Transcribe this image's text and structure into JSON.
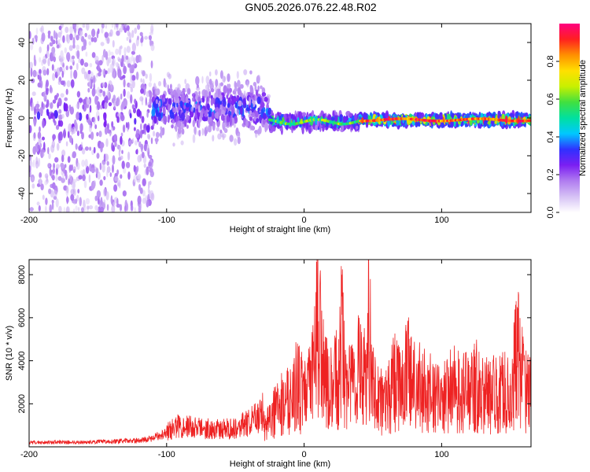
{
  "title": "GN05.2026.076.22.48.R02",
  "chart_data": [
    {
      "type": "heatmap",
      "xlabel": "Height of straight line (km)",
      "ylabel": "Frequency (Hz)",
      "xlim": [
        -200,
        165
      ],
      "ylim": [
        -50,
        50
      ],
      "xticks": [
        -200,
        -100,
        0,
        100
      ],
      "yticks": [
        -40,
        -20,
        0,
        20,
        40
      ],
      "colorbar": {
        "label": "Normalized spectral amplitude",
        "range": [
          0.0,
          1.0
        ],
        "ticks": [
          0.0,
          0.2,
          0.4,
          0.6,
          0.8
        ],
        "tick_labels": [
          "0.0",
          "0.2",
          "0.4",
          "0.6",
          "0.8"
        ],
        "colormap": [
          "#ffffff",
          "#d6c2f5",
          "#b07cf0",
          "#7b1ff2",
          "#3030ff",
          "#00c8ff",
          "#00e0a0",
          "#40e040",
          "#c8f000",
          "#ffe000",
          "#ff9000",
          "#ff2020",
          "#ff0080"
        ]
      },
      "regions": [
        {
          "x_range": [
            -200,
            -110
          ],
          "y_center": 0,
          "y_spread": 50,
          "amplitude": 0.15,
          "description_level": "scattered noise"
        },
        {
          "x_range": [
            -110,
            -25
          ],
          "y_center": 5,
          "y_spread": 12,
          "amplitude": 0.35
        },
        {
          "x_range": [
            -25,
            40
          ],
          "y_center": -2,
          "y_spread": 3,
          "amplitude": 0.6
        },
        {
          "x_range": [
            40,
            165
          ],
          "y_center": -1,
          "y_spread": 2,
          "amplitude": 0.9
        }
      ]
    },
    {
      "type": "line",
      "xlabel": "Height of straight line (km)",
      "ylabel": "SNR (10 * v/v)",
      "xlim": [
        -200,
        165
      ],
      "ylim": [
        0,
        8700
      ],
      "xticks": [
        -200,
        -100,
        0,
        100
      ],
      "yticks": [
        2000,
        4000,
        6000,
        8000
      ],
      "series": [
        {
          "name": "SNR",
          "color": "#ee2222",
          "x": [
            -200,
            -180,
            -160,
            -140,
            -120,
            -110,
            -100,
            -90,
            -80,
            -70,
            -60,
            -50,
            -40,
            -30,
            -20,
            -15,
            -10,
            -5,
            0,
            5,
            10,
            15,
            20,
            25,
            27,
            30,
            35,
            40,
            45,
            47,
            50,
            55,
            60,
            65,
            70,
            75,
            80,
            85,
            90,
            95,
            100,
            105,
            110,
            115,
            120,
            125,
            130,
            135,
            140,
            145,
            150,
            155,
            160,
            165
          ],
          "values": [
            200,
            220,
            210,
            250,
            300,
            400,
            700,
            1000,
            900,
            850,
            800,
            900,
            1100,
            1600,
            2500,
            3000,
            3600,
            4200,
            3500,
            4000,
            8700,
            4500,
            3800,
            5000,
            8400,
            4500,
            4200,
            6000,
            4300,
            8500,
            4200,
            3200,
            3000,
            4500,
            4000,
            5200,
            4300,
            4000,
            3800,
            3300,
            3200,
            3700,
            4000,
            3600,
            3800,
            4300,
            3700,
            3500,
            3600,
            3800,
            3400,
            6500,
            4000,
            4100
          ]
        }
      ]
    }
  ]
}
